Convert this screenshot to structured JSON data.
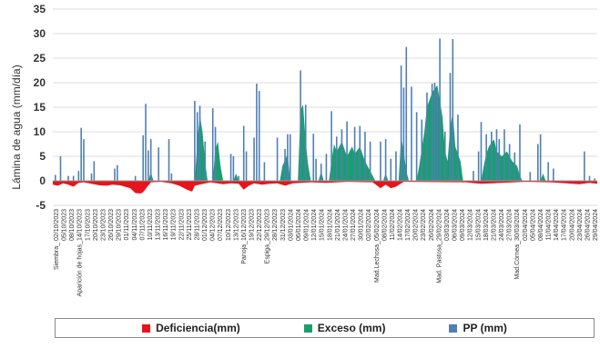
{
  "chart_data": {
    "type": "area",
    "ylabel": "Lámina de agua (mm/día)",
    "ylim": [
      -5,
      35
    ],
    "yticks": [
      -5,
      0,
      5,
      10,
      15,
      20,
      25,
      30,
      35
    ],
    "grid": true,
    "legend_position": "bottom",
    "x_start": "2023-10-02",
    "x_end": "2024-04-30",
    "x_tick_labels": [
      "Siembra_ 02/10/2023",
      "05/10/2023",
      "08/10/2023",
      "Aparición de hojas_14/10/2023",
      "17/10/2023",
      "20/10/2023",
      "23/10/2023",
      "26/10/2023",
      "29/10/2023",
      "01/11/2023",
      "04/11/2023",
      "07/11/2023",
      "10/11/2023",
      "13/11/2023",
      "16/11/2023",
      "19/11/2023",
      "22/11/2023",
      "25/11/2023",
      "28/11/2023",
      "01/12/2023",
      "04/12/2023",
      "07/12/2023",
      "10/12/2023",
      "13/12/2023",
      "Panoja_16/12/2023",
      "19/12/2023",
      "22/12/2023",
      "Espiga_29/12/2023",
      "28/12/2023",
      "31/12/2023",
      "03/01/2024",
      "06/01/2024",
      "09/01/2024",
      "12/01/2024",
      "15/01/2024",
      "18/01/2024",
      "21/01/2024",
      "24/01/2024",
      "27/01/2024",
      "30/01/2024",
      "02/02/2024",
      "Mad.Lechosa_05/02/2024",
      "08/02/2024",
      "11/02/2024",
      "14/02/2024",
      "17/02/2024",
      "20/02/2024",
      "23/02/2024",
      "26/02/2024",
      "Mad. Pastosa_29/02/2024",
      "03/03/2024",
      "06/03/2024",
      "09/03/2024",
      "12/03/2024",
      "15/03/2024",
      "18/03/2024",
      "21/03/2024",
      "24/03/2024",
      "27/03/2024",
      "Mad.Córnea_30/03/2024",
      "02/04/2024",
      "05/04/2024",
      "08/04/2024",
      "11/04/2024",
      "14/04/2024",
      "17/04/2024",
      "20/04/2024",
      "23/04/2024",
      "26/04/2024",
      "29/04/2024"
    ],
    "series": [
      {
        "name": "Deficiencia(mm)",
        "color": "#e8141b",
        "kind": "area",
        "points": [
          [
            "2023-10-02",
            -0.8
          ],
          [
            "2023-10-04",
            -1.0
          ],
          [
            "2023-10-06",
            -0.5
          ],
          [
            "2023-10-08",
            -0.8
          ],
          [
            "2023-10-10",
            -1.2
          ],
          [
            "2023-10-12",
            -0.4
          ],
          [
            "2023-10-14",
            -0.3
          ],
          [
            "2023-10-17",
            -0.6
          ],
          [
            "2023-10-20",
            -0.9
          ],
          [
            "2023-10-23",
            -1.0
          ],
          [
            "2023-10-25",
            -0.8
          ],
          [
            "2023-10-28",
            -0.9
          ],
          [
            "2023-10-30",
            -1.2
          ],
          [
            "2023-11-01",
            -1.5
          ],
          [
            "2023-11-03",
            -2.5
          ],
          [
            "2023-11-05",
            -2.6
          ],
          [
            "2023-11-06",
            -2.3
          ],
          [
            "2023-11-09",
            -0.3
          ],
          [
            "2023-11-13",
            -0.2
          ],
          [
            "2023-11-17",
            -0.5
          ],
          [
            "2023-11-20",
            -1.0
          ],
          [
            "2023-11-23",
            -1.8
          ],
          [
            "2023-11-25",
            -2.2
          ],
          [
            "2023-11-26",
            -1.0
          ],
          [
            "2023-12-02",
            -0.3
          ],
          [
            "2023-12-07",
            -0.7
          ],
          [
            "2023-12-10",
            -0.5
          ],
          [
            "2023-12-13",
            -0.6
          ],
          [
            "2023-12-15",
            -1.8
          ],
          [
            "2023-12-17",
            -1.0
          ],
          [
            "2023-12-19",
            -0.5
          ],
          [
            "2023-12-22",
            -0.8
          ],
          [
            "2023-12-25",
            -0.6
          ],
          [
            "2023-12-28",
            -0.5
          ],
          [
            "2023-12-31",
            -1.0
          ],
          [
            "2024-01-03",
            -0.5
          ],
          [
            "2024-01-10",
            -0.3
          ],
          [
            "2024-01-16",
            -0.4
          ],
          [
            "2024-01-24",
            -0.2
          ],
          [
            "2024-02-03",
            -0.3
          ],
          [
            "2024-02-06",
            -1.5
          ],
          [
            "2024-02-08",
            -0.8
          ],
          [
            "2024-02-10",
            -1.5
          ],
          [
            "2024-02-12",
            -1.2
          ],
          [
            "2024-02-15",
            -0.2
          ],
          [
            "2024-03-10",
            -0.3
          ],
          [
            "2024-03-14",
            -0.5
          ],
          [
            "2024-03-16",
            -0.6
          ],
          [
            "2024-04-02",
            -0.2
          ],
          [
            "2024-04-12",
            -0.3
          ],
          [
            "2024-04-18",
            -0.5
          ],
          [
            "2024-04-23",
            -0.7
          ],
          [
            "2024-04-27",
            -0.4
          ],
          [
            "2024-04-30",
            -0.6
          ]
        ]
      },
      {
        "name": "Exceso (mm)",
        "color": "#1a9e6e",
        "kind": "area",
        "points": [
          [
            "2023-11-08",
            0
          ],
          [
            "2023-11-09",
            1.8
          ],
          [
            "2023-11-10",
            0
          ],
          [
            "2023-11-26",
            0
          ],
          [
            "2023-11-27",
            8.0
          ],
          [
            "2023-11-28",
            13.5
          ],
          [
            "2023-11-29",
            10.0
          ],
          [
            "2023-11-30",
            4.0
          ],
          [
            "2023-12-01",
            0
          ],
          [
            "2023-12-03",
            0
          ],
          [
            "2023-12-04",
            6.5
          ],
          [
            "2023-12-05",
            8.0
          ],
          [
            "2023-12-06",
            3.0
          ],
          [
            "2023-12-07",
            0
          ],
          [
            "2023-12-11",
            0
          ],
          [
            "2023-12-12",
            1.5
          ],
          [
            "2023-12-13",
            0
          ],
          [
            "2023-12-29",
            0
          ],
          [
            "2023-12-30",
            3.0
          ],
          [
            "2024-01-01",
            5.5
          ],
          [
            "2024-01-02",
            0
          ],
          [
            "2024-01-05",
            0
          ],
          [
            "2024-01-06",
            14.5
          ],
          [
            "2024-01-07",
            15.5
          ],
          [
            "2024-01-08",
            8.0
          ],
          [
            "2024-01-09",
            3.0
          ],
          [
            "2024-01-10",
            0
          ],
          [
            "2024-01-13",
            0
          ],
          [
            "2024-01-14",
            2.0
          ],
          [
            "2024-01-15",
            0
          ],
          [
            "2024-01-17",
            0
          ],
          [
            "2024-01-18",
            4.0
          ],
          [
            "2024-01-19",
            7.5
          ],
          [
            "2024-01-20",
            6.0
          ],
          [
            "2024-01-22",
            8.0
          ],
          [
            "2024-01-24",
            5.0
          ],
          [
            "2024-01-26",
            7.0
          ],
          [
            "2024-01-27",
            5.5
          ],
          [
            "2024-01-29",
            7.0
          ],
          [
            "2024-01-31",
            4.0
          ],
          [
            "2024-02-02",
            2.0
          ],
          [
            "2024-02-04",
            0
          ],
          [
            "2024-02-07",
            0
          ],
          [
            "2024-02-08",
            1.5
          ],
          [
            "2024-02-09",
            0
          ],
          [
            "2024-02-13",
            0
          ],
          [
            "2024-02-14",
            9.0
          ],
          [
            "2024-02-15",
            6.0
          ],
          [
            "2024-02-16",
            2.0
          ],
          [
            "2024-02-17",
            0
          ],
          [
            "2024-02-20",
            0
          ],
          [
            "2024-02-21",
            3.0
          ],
          [
            "2024-02-23",
            10.0
          ],
          [
            "2024-02-24",
            15.0
          ],
          [
            "2024-02-26",
            18.0
          ],
          [
            "2024-02-28",
            19.5
          ],
          [
            "2024-03-01",
            13.0
          ],
          [
            "2024-03-02",
            6.0
          ],
          [
            "2024-03-03",
            4.0
          ],
          [
            "2024-03-04",
            11.0
          ],
          [
            "2024-03-05",
            14.0
          ],
          [
            "2024-03-06",
            7.0
          ],
          [
            "2024-03-08",
            4.0
          ],
          [
            "2024-03-09",
            0
          ],
          [
            "2024-03-16",
            0
          ],
          [
            "2024-03-17",
            3.0
          ],
          [
            "2024-03-18",
            5.5
          ],
          [
            "2024-03-19",
            7.0
          ],
          [
            "2024-03-21",
            8.5
          ],
          [
            "2024-03-22",
            6.0
          ],
          [
            "2024-03-24",
            5.0
          ],
          [
            "2024-03-26",
            6.0
          ],
          [
            "2024-03-28",
            4.0
          ],
          [
            "2024-03-30",
            3.0
          ],
          [
            "2024-03-31",
            1.0
          ],
          [
            "2024-04-01",
            0
          ],
          [
            "2024-04-08",
            0
          ],
          [
            "2024-04-09",
            1.5
          ],
          [
            "2024-04-10",
            0
          ]
        ]
      },
      {
        "name": "PP (mm)",
        "color": "#4f7fb5",
        "kind": "bar",
        "points": [
          [
            "2023-10-03",
            1.2
          ],
          [
            "2023-10-05",
            5.0
          ],
          [
            "2023-10-08",
            1.0
          ],
          [
            "2023-10-10",
            1.0
          ],
          [
            "2023-10-12",
            2.0
          ],
          [
            "2023-10-13",
            10.8
          ],
          [
            "2023-10-14",
            8.5
          ],
          [
            "2023-10-17",
            1.5
          ],
          [
            "2023-10-18",
            4.0
          ],
          [
            "2023-10-26",
            2.5
          ],
          [
            "2023-10-27",
            3.2
          ],
          [
            "2023-11-03",
            1.0
          ],
          [
            "2023-11-06",
            9.3
          ],
          [
            "2023-11-07",
            15.7
          ],
          [
            "2023-11-08",
            6.2
          ],
          [
            "2023-11-09",
            8.5
          ],
          [
            "2023-11-12",
            6.8
          ],
          [
            "2023-11-16",
            8.5
          ],
          [
            "2023-11-17",
            1.5
          ],
          [
            "2023-11-26",
            16.3
          ],
          [
            "2023-11-27",
            14.0
          ],
          [
            "2023-11-28",
            15.3
          ],
          [
            "2023-11-30",
            8.0
          ],
          [
            "2023-12-03",
            14.8
          ],
          [
            "2023-12-04",
            11.0
          ],
          [
            "2023-12-10",
            5.5
          ],
          [
            "2023-12-11",
            5.0
          ],
          [
            "2023-12-13",
            1.0
          ],
          [
            "2023-12-15",
            11.2
          ],
          [
            "2023-12-16",
            6.0
          ],
          [
            "2023-12-19",
            8.8
          ],
          [
            "2023-12-20",
            19.8
          ],
          [
            "2023-12-21",
            18.3
          ],
          [
            "2023-12-23",
            3.8
          ],
          [
            "2023-12-28",
            8.8
          ],
          [
            "2023-12-31",
            6.5
          ],
          [
            "2024-01-01",
            9.5
          ],
          [
            "2024-01-02",
            9.5
          ],
          [
            "2024-01-06",
            22.5
          ],
          [
            "2024-01-08",
            15.5
          ],
          [
            "2024-01-11",
            9.6
          ],
          [
            "2024-01-12",
            4.5
          ],
          [
            "2024-01-14",
            3.5
          ],
          [
            "2024-01-16",
            5.5
          ],
          [
            "2024-01-18",
            14.2
          ],
          [
            "2024-01-20",
            9.0
          ],
          [
            "2024-01-22",
            10.5
          ],
          [
            "2024-01-24",
            12.1
          ],
          [
            "2024-01-27",
            11.0
          ],
          [
            "2024-01-29",
            11.2
          ],
          [
            "2024-01-31",
            10.0
          ],
          [
            "2024-02-02",
            8.0
          ],
          [
            "2024-02-06",
            8.0
          ],
          [
            "2024-02-08",
            8.5
          ],
          [
            "2024-02-10",
            4.5
          ],
          [
            "2024-02-12",
            6.0
          ],
          [
            "2024-02-14",
            23.5
          ],
          [
            "2024-02-15",
            19.0
          ],
          [
            "2024-02-16",
            27.3
          ],
          [
            "2024-02-18",
            19.2
          ],
          [
            "2024-02-20",
            14.0
          ],
          [
            "2024-02-22",
            12.5
          ],
          [
            "2024-02-24",
            18.0
          ],
          [
            "2024-02-26",
            19.8
          ],
          [
            "2024-02-27",
            20.0
          ],
          [
            "2024-02-28",
            18.5
          ],
          [
            "2024-02-29",
            29.0
          ],
          [
            "2024-03-02",
            10.0
          ],
          [
            "2024-03-04",
            22.0
          ],
          [
            "2024-03-05",
            28.9
          ],
          [
            "2024-03-07",
            13.5
          ],
          [
            "2024-03-13",
            2.0
          ],
          [
            "2024-03-15",
            6.0
          ],
          [
            "2024-03-16",
            12.0
          ],
          [
            "2024-03-18",
            9.5
          ],
          [
            "2024-03-20",
            10.0
          ],
          [
            "2024-03-22",
            10.5
          ],
          [
            "2024-03-23",
            8.5
          ],
          [
            "2024-03-25",
            10.5
          ],
          [
            "2024-03-27",
            7.5
          ],
          [
            "2024-03-29",
            5.8
          ],
          [
            "2024-03-31",
            11.5
          ],
          [
            "2024-04-04",
            1.8
          ],
          [
            "2024-04-07",
            7.5
          ],
          [
            "2024-04-08",
            9.5
          ],
          [
            "2024-04-11",
            3.8
          ],
          [
            "2024-04-13",
            2.5
          ],
          [
            "2024-04-25",
            6.0
          ],
          [
            "2024-04-27",
            1.0
          ],
          [
            "2024-04-29",
            0.5
          ]
        ]
      }
    ]
  }
}
